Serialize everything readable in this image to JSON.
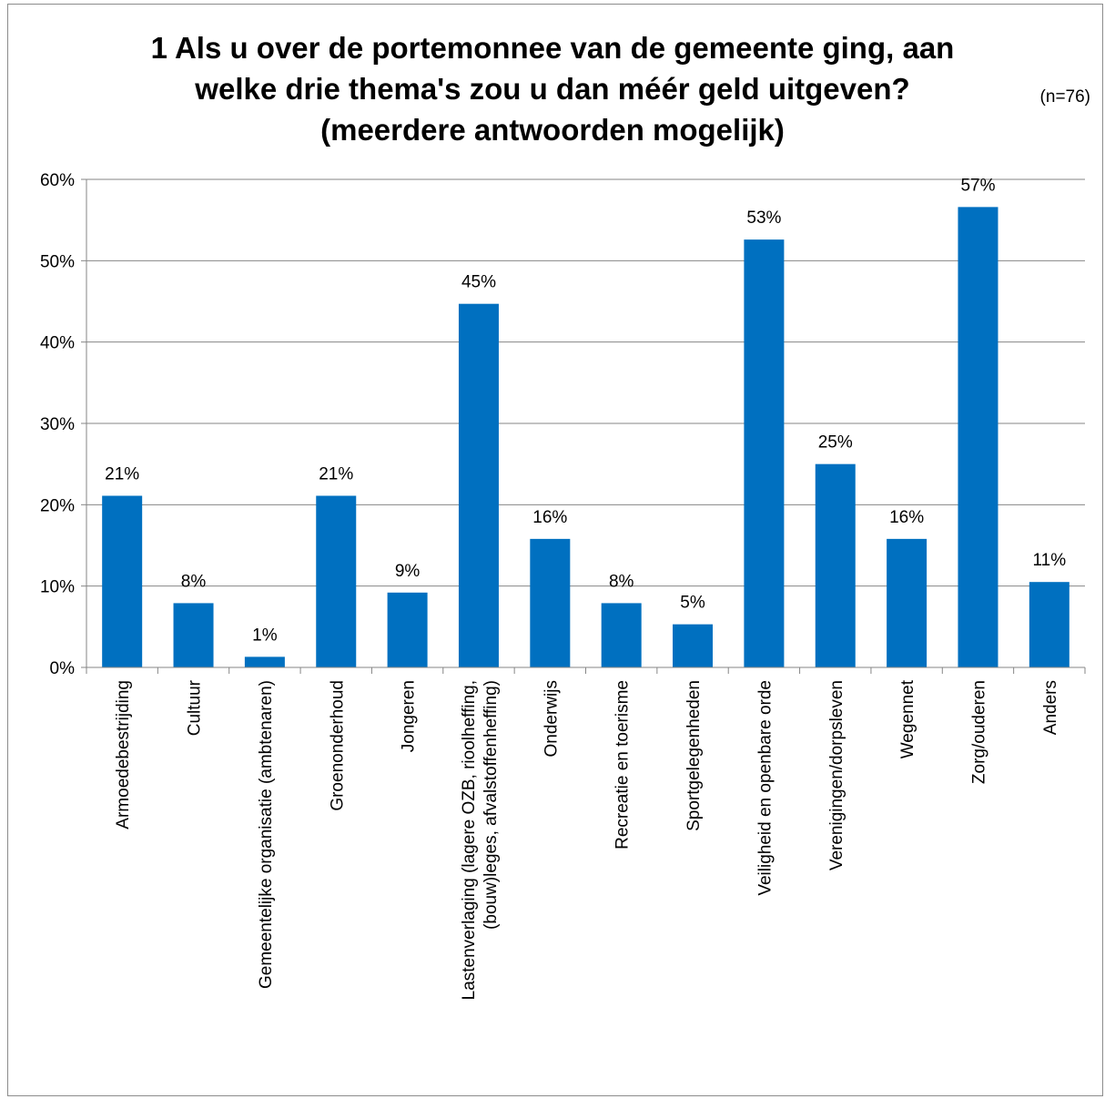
{
  "title_lines": [
    "1 Als u over de portemonnee van de gemeente ging, aan",
    "welke drie thema's zou u dan méér geld uitgeven?",
    "(meerdere antwoorden mogelijk)"
  ],
  "note": "(n=76)",
  "chart_data": {
    "type": "bar",
    "title": "1 Als u over de portemonnee van de gemeente ging, aan welke drie thema's zou u dan méér geld uitgeven? (meerdere antwoorden mogelijk)",
    "categories": [
      [
        "Armoedebestrijding"
      ],
      [
        "Cultuur"
      ],
      [
        "Gemeentelijke organisatie (ambtenaren)"
      ],
      [
        "Groenonderhoud"
      ],
      [
        "Jongeren"
      ],
      [
        "Lastenverlaging (lagere OZB, rioolheffing,",
        "(bouw)leges, afvalstoffenheffing)"
      ],
      [
        "Onderwijs"
      ],
      [
        "Recreatie en toerisme"
      ],
      [
        "Sportgelegenheden"
      ],
      [
        "Veiligheid en openbare orde"
      ],
      [
        "Verenigingen/dorpsleven"
      ],
      [
        "Wegennet"
      ],
      [
        "Zorg/ouderen"
      ],
      [
        "Anders"
      ]
    ],
    "values": [
      21.1,
      7.9,
      1.3,
      21.1,
      9.2,
      44.7,
      15.8,
      7.9,
      5.3,
      52.6,
      25.0,
      15.8,
      56.6,
      10.5
    ],
    "data_labels": [
      "21%",
      "8%",
      "1%",
      "21%",
      "9%",
      "45%",
      "16%",
      "8%",
      "5%",
      "53%",
      "25%",
      "16%",
      "57%",
      "11%"
    ],
    "y_ticks": [
      "0%",
      "10%",
      "20%",
      "30%",
      "40%",
      "50%",
      "60%"
    ],
    "ylim": [
      0,
      60
    ],
    "bar_color": "#0070c0",
    "grid": true,
    "xlabel": "",
    "ylabel": ""
  }
}
